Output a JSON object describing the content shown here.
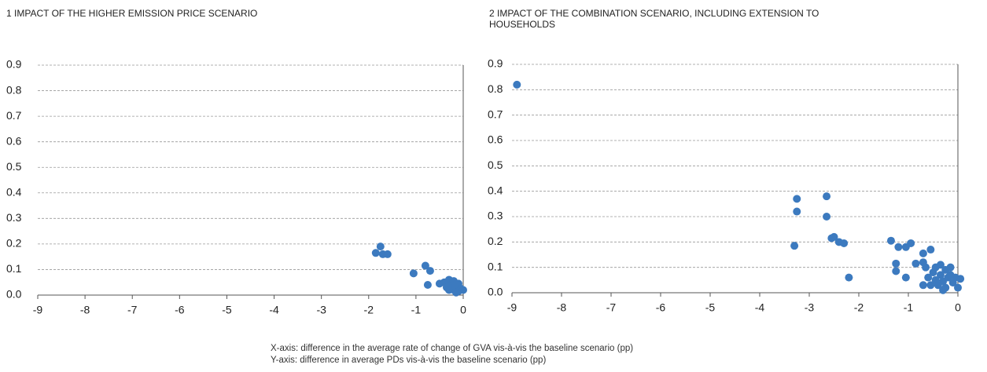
{
  "chart_data": [
    {
      "type": "scatter",
      "title": "1  IMPACT OF THE HIGHER EMISSION PRICE SCENARIO",
      "color": "#3c7abf",
      "xlim": [
        -9,
        0
      ],
      "ylim": [
        0,
        0.9
      ],
      "xticks": [
        -9,
        -8,
        -7,
        -6,
        -5,
        -4,
        -3,
        -2,
        -1,
        0
      ],
      "yticks": [
        {
          "value": 0,
          "label": "0.0"
        },
        0.1,
        0.2,
        0.3,
        0.4,
        0.5,
        0.6,
        0.7,
        0.8,
        0.9
      ],
      "grid": true,
      "x": [
        -1.85,
        -1.75,
        -1.7,
        -1.6,
        -1.05,
        -0.8,
        -0.7,
        -0.75,
        -0.5,
        -0.4,
        -0.35,
        -0.3,
        -0.25,
        -0.2,
        -0.2,
        -0.15,
        -0.1,
        -0.1,
        -0.05,
        0,
        -0.3,
        -0.15
      ],
      "y": [
        0.165,
        0.19,
        0.16,
        0.16,
        0.085,
        0.115,
        0.095,
        0.04,
        0.045,
        0.05,
        0.03,
        0.06,
        0.04,
        0.055,
        0.02,
        0.03,
        0.045,
        0.015,
        0.025,
        0.02,
        0.02,
        0.01
      ]
    },
    {
      "type": "scatter",
      "title": "2  IMPACT OF THE COMBINATION SCENARIO, INCLUDING EXTENSION TO HOUSEHOLDS",
      "color": "#3c7abf",
      "xlim": [
        -9,
        0
      ],
      "ylim": [
        0,
        0.9
      ],
      "xticks": [
        -9,
        -8,
        -7,
        -6,
        -5,
        -4,
        -3,
        -2,
        -1,
        0
      ],
      "yticks": [
        {
          "value": 0,
          "label": "0.0"
        },
        0.1,
        0.2,
        0.3,
        0.4,
        0.5,
        0.6,
        0.7,
        0.8,
        0.9
      ],
      "grid": true,
      "x": [
        -8.9,
        -3.25,
        -3.25,
        -3.3,
        -2.65,
        -2.65,
        -2.5,
        -2.55,
        -2.4,
        -2.3,
        -2.2,
        -1.35,
        -1.25,
        -1.25,
        -1.2,
        -1.05,
        -1.05,
        -0.95,
        -0.85,
        -0.7,
        -0.7,
        -0.65,
        -0.6,
        -0.55,
        -0.55,
        -0.5,
        -0.45,
        -0.4,
        -0.35,
        -0.35,
        -0.3,
        -0.25,
        -0.25,
        -0.2,
        -0.15,
        -0.1,
        -0.05,
        0,
        0.05,
        -0.7,
        -0.45,
        -0.3,
        -0.15
      ],
      "y": [
        0.82,
        0.37,
        0.32,
        0.185,
        0.38,
        0.3,
        0.22,
        0.215,
        0.2,
        0.195,
        0.06,
        0.205,
        0.115,
        0.085,
        0.18,
        0.18,
        0.06,
        0.195,
        0.115,
        0.155,
        0.12,
        0.1,
        0.06,
        0.17,
        0.03,
        0.08,
        0.05,
        0.03,
        0.11,
        0.07,
        0.045,
        0.09,
        0.02,
        0.06,
        0.1,
        0.04,
        0.06,
        0.02,
        0.055,
        0.03,
        0.1,
        0.01,
        0.07
      ]
    }
  ],
  "notes": [
    "X-axis: difference in the average rate of change of GVA vis-à-vis the baseline scenario (pp)",
    "Y-axis: difference in average PDs vis-à-vis the baseline scenario (pp)"
  ]
}
